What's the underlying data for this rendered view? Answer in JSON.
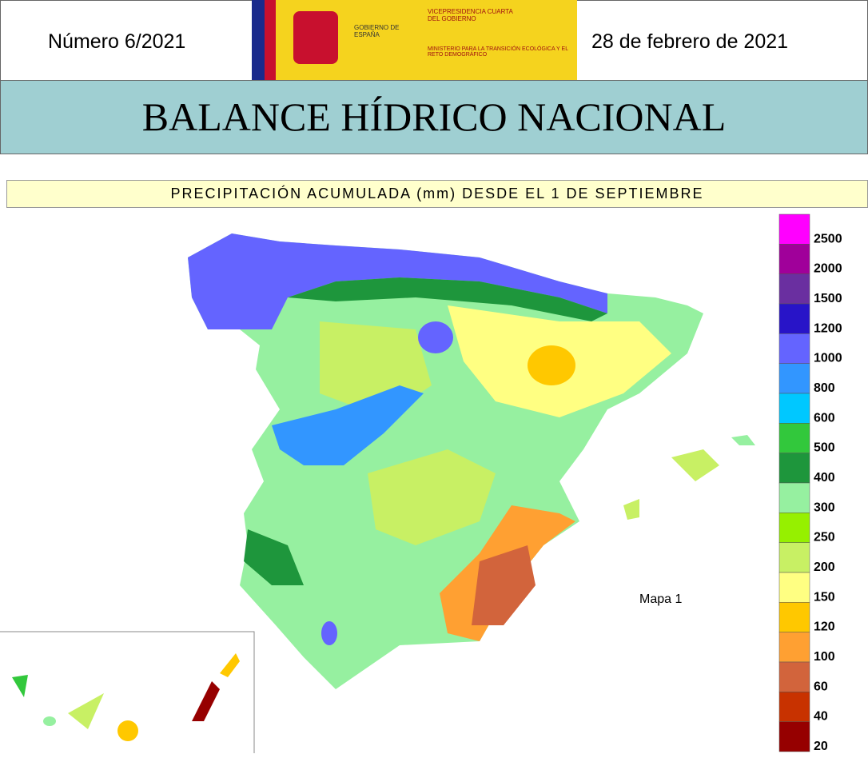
{
  "header": {
    "number": "Número 6/2021",
    "date": "28 de febrero de 2021",
    "logo_left": "GOBIERNO DE ESPAÑA",
    "logo_right_top": "VICEPRESIDENCIA CUARTA DEL GOBIERNO",
    "logo_right_bottom": "MINISTERIO PARA LA TRANSICIÓN ECOLÓGICA Y EL RETO DEMOGRÁFICO",
    "title": "BALANCE HÍDRICO NACIONAL"
  },
  "map": {
    "subtitle": "PRECIPITACIÓN ACUMULADA (mm) DESDE EL 1 DE SEPTIEMBRE",
    "label": "Mapa 1"
  },
  "legend": {
    "items": [
      {
        "color": "#ff00ff",
        "label": "2500"
      },
      {
        "color": "#a0009a",
        "label": "2000"
      },
      {
        "color": "#6a2fa0",
        "label": "1500"
      },
      {
        "color": "#2814c8",
        "label": "1200"
      },
      {
        "color": "#6464ff",
        "label": "1000"
      },
      {
        "color": "#3296ff",
        "label": "800"
      },
      {
        "color": "#00c8ff",
        "label": "600"
      },
      {
        "color": "#32c83c",
        "label": "500"
      },
      {
        "color": "#1e963c",
        "label": "400"
      },
      {
        "color": "#96f0a0",
        "label": "300"
      },
      {
        "color": "#96f000",
        "label": "250"
      },
      {
        "color": "#c8f064",
        "label": "200"
      },
      {
        "color": "#ffff82",
        "label": "150"
      },
      {
        "color": "#ffc800",
        "label": "120"
      },
      {
        "color": "#ffa032",
        "label": "100"
      },
      {
        "color": "#d2643c",
        "label": "60"
      },
      {
        "color": "#c83200",
        "label": "40"
      },
      {
        "color": "#960000",
        "label": "20"
      }
    ]
  }
}
